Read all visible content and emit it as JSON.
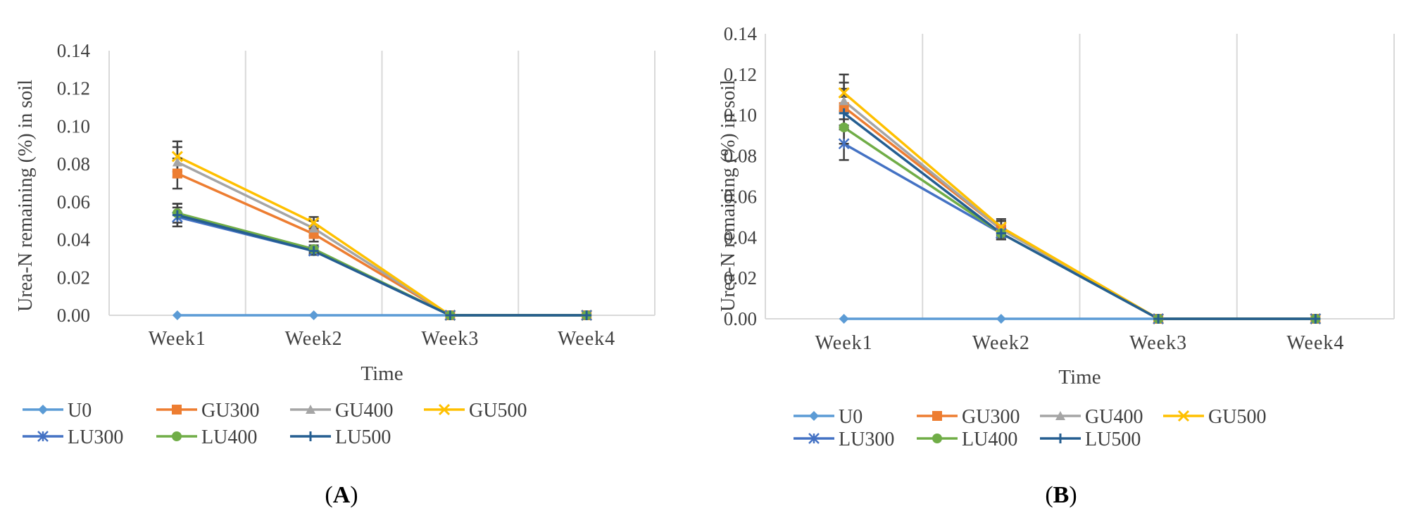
{
  "colors": {
    "U0": "#5B9BD5",
    "GU300": "#ED7D31",
    "GU400": "#A5A5A5",
    "GU500": "#FFC000",
    "LU300": "#4472C4",
    "LU400": "#70AD47",
    "LU500": "#255E91"
  },
  "markers": {
    "U0": "diamond",
    "GU300": "square",
    "GU400": "triangle",
    "GU500": "x",
    "LU300": "star",
    "LU400": "circle",
    "LU500": "plus"
  },
  "chart_data": [
    {
      "type": "line",
      "panel": "A",
      "panel_label_text": "A",
      "title": "",
      "xlabel": "Time",
      "ylabel": "Urea-N remaining (%) in soil",
      "categories": [
        "Week1",
        "Week2",
        "Week3",
        "Week4"
      ],
      "ylim": [
        0,
        0.14
      ],
      "yticks": [
        "0.00",
        "0.02",
        "0.04",
        "0.06",
        "0.08",
        "0.10",
        "0.12",
        "0.14"
      ],
      "grid": "vertical",
      "legend_position": "bottom",
      "series": [
        {
          "name": "U0",
          "values": [
            0.0,
            0.0,
            0.0,
            0.0
          ],
          "error": [
            0,
            0,
            0,
            0
          ]
        },
        {
          "name": "GU300",
          "values": [
            0.075,
            0.043,
            0.0,
            0.0
          ],
          "error": [
            0.008,
            0.004,
            0,
            0
          ]
        },
        {
          "name": "GU400",
          "values": [
            0.081,
            0.046,
            0.0,
            0.0
          ],
          "error": [
            0.008,
            0.004,
            0,
            0
          ]
        },
        {
          "name": "GU500",
          "values": [
            0.084,
            0.049,
            0.0,
            0.0
          ],
          "error": [
            0.008,
            0.003,
            0,
            0
          ]
        },
        {
          "name": "LU300",
          "values": [
            0.052,
            0.034,
            0.0,
            0.0
          ],
          "error": [
            0.005,
            0.002,
            0,
            0
          ]
        },
        {
          "name": "LU400",
          "values": [
            0.054,
            0.035,
            0.0,
            0.0
          ],
          "error": [
            0.005,
            0.002,
            0,
            0
          ]
        },
        {
          "name": "LU500",
          "values": [
            0.053,
            0.034,
            0.0,
            0.0
          ],
          "error": [
            0.006,
            0.002,
            0,
            0
          ]
        }
      ]
    },
    {
      "type": "line",
      "panel": "B",
      "panel_label_text": "B",
      "title": "",
      "xlabel": "Time",
      "ylabel": "Urea-N remaining (%) in soil",
      "categories": [
        "Week1",
        "Week2",
        "Week3",
        "Week4"
      ],
      "ylim": [
        0,
        0.14
      ],
      "yticks": [
        "0.00",
        "0.02",
        "0.04",
        "0.06",
        "0.08",
        "0.10",
        "0.12",
        "0.14"
      ],
      "grid": "vertical",
      "legend_position": "bottom",
      "series": [
        {
          "name": "U0",
          "values": [
            0.0,
            0.0,
            0.0,
            0.0
          ],
          "error": [
            0,
            0,
            0,
            0
          ]
        },
        {
          "name": "GU300",
          "values": [
            0.104,
            0.044,
            0.0,
            0.0
          ],
          "error": [
            0.009,
            0.004,
            0,
            0
          ]
        },
        {
          "name": "GU400",
          "values": [
            0.107,
            0.044,
            0.0,
            0.0
          ],
          "error": [
            0.009,
            0.004,
            0,
            0
          ]
        },
        {
          "name": "GU500",
          "values": [
            0.111,
            0.045,
            0.0,
            0.0
          ],
          "error": [
            0.009,
            0.004,
            0,
            0
          ]
        },
        {
          "name": "LU300",
          "values": [
            0.086,
            0.042,
            0.0,
            0.0
          ],
          "error": [
            0.008,
            0.003,
            0,
            0
          ]
        },
        {
          "name": "LU400",
          "values": [
            0.094,
            0.042,
            0.0,
            0.0
          ],
          "error": [
            0.008,
            0.003,
            0,
            0
          ]
        },
        {
          "name": "LU500",
          "values": [
            0.101,
            0.042,
            0.0,
            0.0
          ],
          "error": [
            0.008,
            0.003,
            0,
            0
          ]
        }
      ]
    }
  ]
}
